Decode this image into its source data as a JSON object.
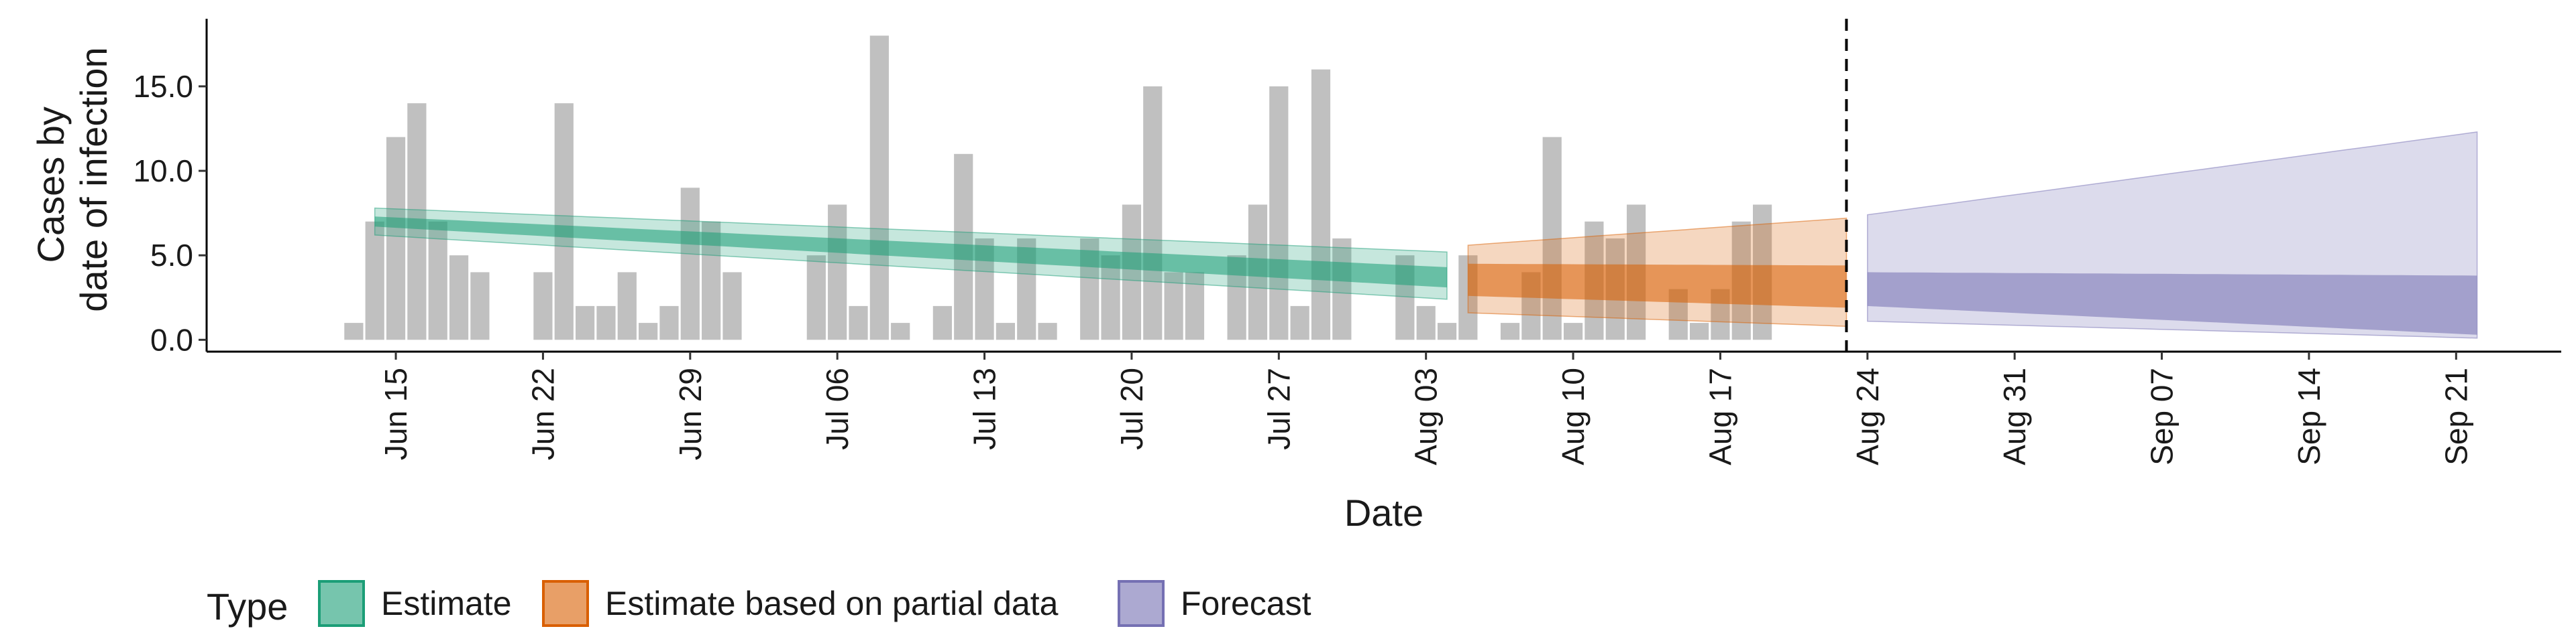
{
  "chart_data": {
    "type": "area",
    "title": "",
    "xlabel": "Date",
    "ylabel_lines": [
      "Cases by",
      "date of infection"
    ],
    "ylim": [
      -0.7,
      19
    ],
    "xlim": [
      "2020-06-06",
      "2020-09-26"
    ],
    "y_ticks": [
      0,
      5,
      10,
      15
    ],
    "y_tick_labels": [
      "0.0",
      "5.0",
      "10.0",
      "15.0"
    ],
    "x_ticks": [
      "2020-06-15",
      "2020-06-22",
      "2020-06-29",
      "2020-07-06",
      "2020-07-13",
      "2020-07-20",
      "2020-07-27",
      "2020-08-03",
      "2020-08-10",
      "2020-08-17",
      "2020-08-24",
      "2020-08-31",
      "2020-09-07",
      "2020-09-14",
      "2020-09-21"
    ],
    "x_tick_labels": [
      "Jun 15",
      "Jun 22",
      "Jun 29",
      "Jul 06",
      "Jul 13",
      "Jul 20",
      "Jul 27",
      "Aug 03",
      "Aug 10",
      "Aug 17",
      "Aug 24",
      "Aug 31",
      "Sep 07",
      "Sep 14",
      "Sep 21"
    ],
    "forecast_date": "2020-08-23",
    "bars": {
      "start_date": "2020-06-13",
      "values": [
        1,
        7,
        12,
        14,
        7,
        5,
        4,
        0,
        0,
        4,
        14,
        2,
        2,
        4,
        1,
        2,
        9,
        7,
        4,
        0,
        0,
        0,
        5,
        8,
        2,
        18,
        1,
        0,
        2,
        11,
        6,
        1,
        6,
        1,
        0,
        6,
        5,
        8,
        15,
        4,
        4,
        0,
        5,
        8,
        15,
        2,
        16,
        6,
        0,
        0,
        5,
        2,
        1,
        5,
        0,
        1,
        4,
        12,
        1,
        7,
        6,
        8,
        0,
        3,
        1,
        3,
        7,
        8
      ]
    },
    "series": [
      {
        "name": "Estimate",
        "color": "#1b9e77",
        "start": "2020-06-14",
        "end": "2020-08-04",
        "median": [
          7.0,
          3.6
        ],
        "inner": [
          [
            6.7,
            7.3
          ],
          [
            3.1,
            4.3
          ]
        ],
        "outer": [
          [
            6.2,
            7.8
          ],
          [
            2.4,
            5.2
          ]
        ]
      },
      {
        "name": "Estimate based on partial data",
        "color": "#d95f02",
        "start": "2020-08-05",
        "end": "2020-08-23",
        "median": [
          3.4,
          2.8
        ],
        "inner": [
          [
            2.6,
            4.5
          ],
          [
            1.9,
            4.4
          ]
        ],
        "outer": [
          [
            1.6,
            5.6
          ],
          [
            0.8,
            7.2
          ]
        ]
      },
      {
        "name": "Forecast",
        "color": "#7570b3",
        "start": "2020-08-24",
        "end": "2020-09-22",
        "median": [
          3.0,
          2.3
        ],
        "inner": [
          [
            2.0,
            4.0
          ],
          [
            0.3,
            3.8
          ]
        ],
        "outer": [
          [
            1.1,
            7.4
          ],
          [
            0.1,
            12.3
          ]
        ]
      }
    ],
    "legend": {
      "title": "Type",
      "position": "bottom",
      "entries": [
        "Estimate",
        "Estimate based on partial data",
        "Forecast"
      ]
    }
  }
}
